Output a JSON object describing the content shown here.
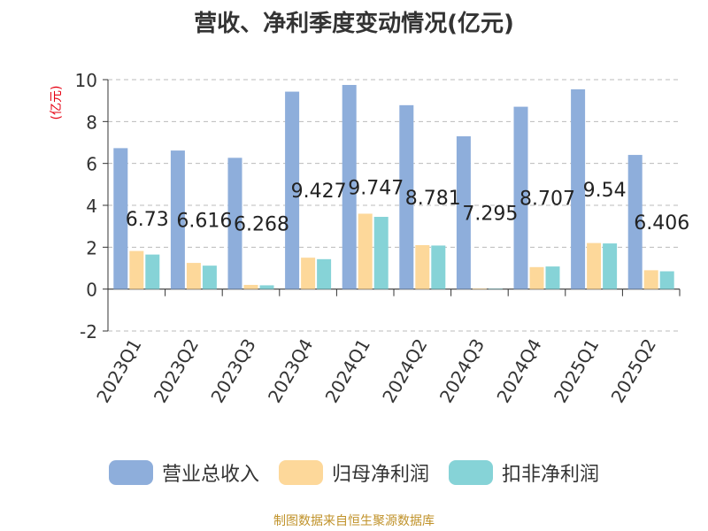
{
  "chart_data": {
    "type": "bar",
    "title": "营收、净利季度变动情况(亿元)",
    "ylabel": "(亿元)",
    "xlabel": "",
    "categories": [
      "2023Q1",
      "2023Q2",
      "2023Q3",
      "2023Q4",
      "2024Q1",
      "2024Q2",
      "2024Q3",
      "2024Q4",
      "2025Q1",
      "2025Q2"
    ],
    "ylim": [
      -2,
      10
    ],
    "yticks": [
      -2,
      0,
      2,
      4,
      6,
      8,
      10
    ],
    "grid": true,
    "legend_position": "bottom",
    "series": [
      {
        "name": "营业总收入",
        "color": "#8eaedb",
        "values": [
          6.73,
          6.616,
          6.268,
          9.427,
          9.747,
          8.781,
          7.295,
          8.707,
          9.54,
          6.406
        ],
        "data_labels": [
          "6.73",
          "6.616",
          "6.268",
          "9.427",
          "9.747",
          "8.781",
          "7.295",
          "8.707",
          "9.54",
          "6.406"
        ]
      },
      {
        "name": "归母净利润",
        "color": "#fdd89a",
        "values": [
          1.82,
          1.25,
          0.2,
          1.5,
          3.6,
          2.1,
          0.03,
          1.05,
          2.2,
          0.9
        ]
      },
      {
        "name": "扣非净利润",
        "color": "#86d3d7",
        "values": [
          1.65,
          1.12,
          0.18,
          1.43,
          3.45,
          2.08,
          0.02,
          1.08,
          2.18,
          0.85
        ]
      }
    ]
  },
  "source": "制图数据来自恒生聚源数据库"
}
